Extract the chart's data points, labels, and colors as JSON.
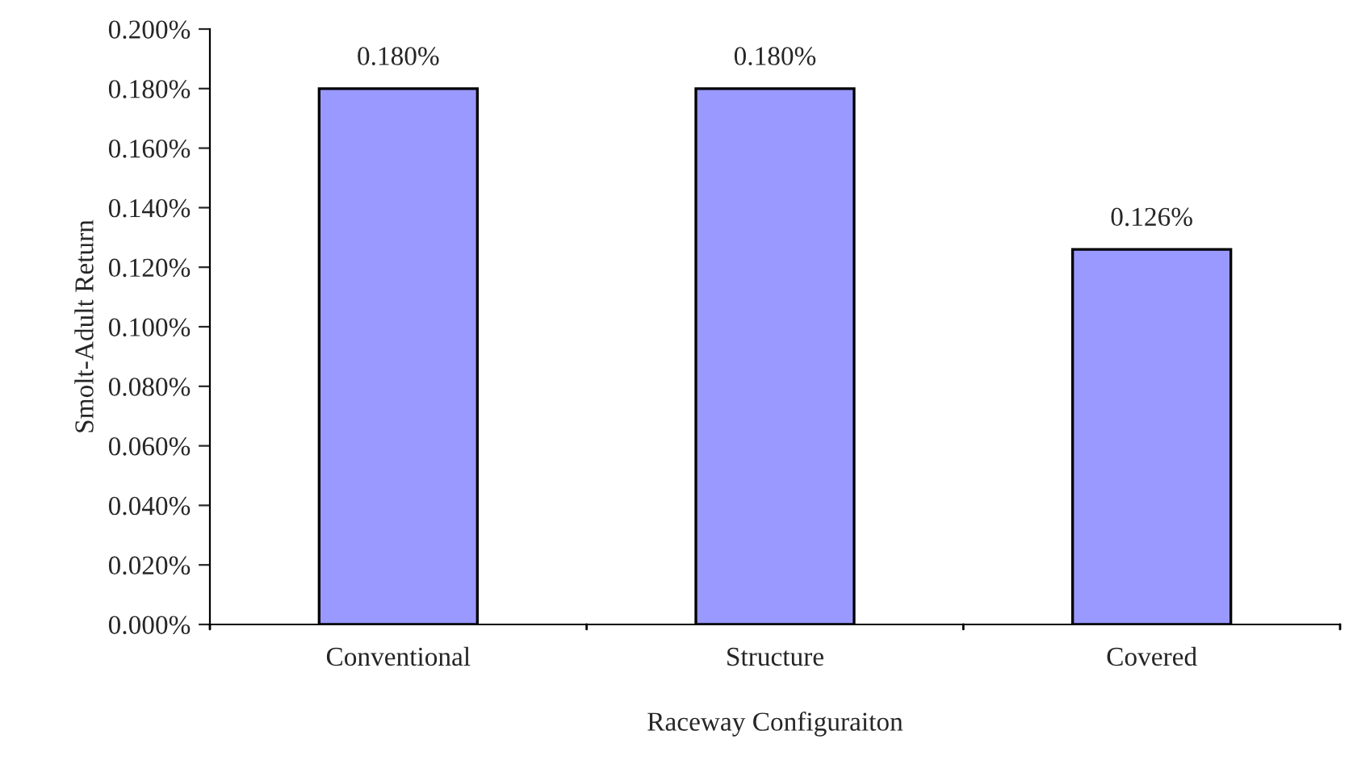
{
  "chart_data": {
    "type": "bar",
    "xlabel": "Raceway Configuraiton",
    "ylabel": "Smolt-Adult Return",
    "categories": [
      "Conventional",
      "Structure",
      "Covered"
    ],
    "values": [
      0.18,
      0.18,
      0.126
    ],
    "value_labels": [
      "0.180%",
      "0.180%",
      "0.126%"
    ],
    "color": "#9999ff",
    "ylim": [
      0,
      0.2
    ],
    "yticks": [
      {
        "value": 0,
        "label": "0.000%"
      },
      {
        "value": 0.02,
        "label": "0.020%"
      },
      {
        "value": 0.04,
        "label": "0.040%"
      },
      {
        "value": 0.06,
        "label": "0.060%"
      },
      {
        "value": 0.08,
        "label": "0.080%"
      },
      {
        "value": 0.1,
        "label": "0.100%"
      },
      {
        "value": 0.12,
        "label": "0.120%"
      },
      {
        "value": 0.14,
        "label": "0.140%"
      },
      {
        "value": 0.16,
        "label": "0.160%"
      },
      {
        "value": 0.18,
        "label": "0.180%"
      },
      {
        "value": 0.2,
        "label": "0.200%"
      }
    ],
    "grid": false,
    "legend": false
  }
}
